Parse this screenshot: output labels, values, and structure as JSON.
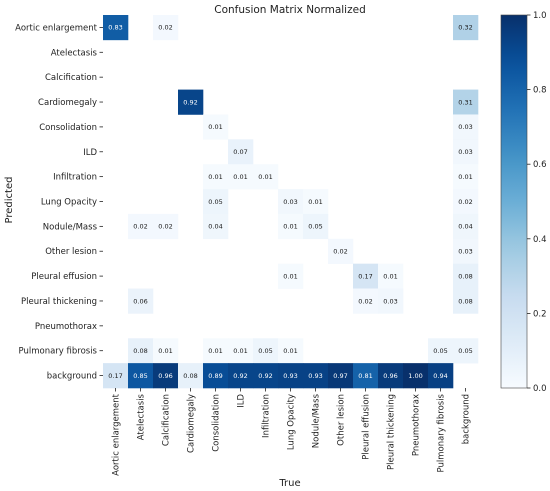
{
  "chart_data": {
    "type": "heatmap",
    "title": "Confusion Matrix Normalized",
    "xlabel": "True",
    "ylabel": "Predicted",
    "x_categories": [
      "Aortic enlargement",
      "Atelectasis",
      "Calcification",
      "Cardiomegaly",
      "Consolidation",
      "ILD",
      "Infiltration",
      "Lung Opacity",
      "Nodule/Mass",
      "Other lesion",
      "Pleural effusion",
      "Pleural thickening",
      "Pneumothorax",
      "Pulmonary fibrosis",
      "background"
    ],
    "y_categories": [
      "Aortic enlargement",
      "Atelectasis",
      "Calcification",
      "Cardiomegaly",
      "Consolidation",
      "ILD",
      "Infiltration",
      "Lung Opacity",
      "Nodule/Mass",
      "Other lesion",
      "Pleural effusion",
      "Pleural thickening",
      "Pneumothorax",
      "Pulmonary fibrosis",
      "background"
    ],
    "values": [
      [
        0.83,
        null,
        0.02,
        null,
        null,
        null,
        null,
        null,
        null,
        null,
        null,
        null,
        null,
        null,
        0.32
      ],
      [
        null,
        null,
        null,
        null,
        null,
        null,
        null,
        null,
        null,
        null,
        null,
        null,
        null,
        null,
        null
      ],
      [
        null,
        null,
        null,
        null,
        null,
        null,
        null,
        null,
        null,
        null,
        null,
        null,
        null,
        null,
        null
      ],
      [
        null,
        null,
        null,
        0.92,
        null,
        null,
        null,
        null,
        null,
        null,
        null,
        null,
        null,
        null,
        0.31
      ],
      [
        null,
        null,
        null,
        null,
        0.01,
        null,
        null,
        null,
        null,
        null,
        null,
        null,
        null,
        null,
        0.03
      ],
      [
        null,
        null,
        null,
        null,
        null,
        0.07,
        null,
        null,
        null,
        null,
        null,
        null,
        null,
        null,
        0.03
      ],
      [
        null,
        null,
        null,
        null,
        0.01,
        0.01,
        0.01,
        null,
        null,
        null,
        null,
        null,
        null,
        null,
        0.01
      ],
      [
        null,
        null,
        null,
        null,
        0.05,
        null,
        null,
        0.03,
        0.01,
        null,
        null,
        null,
        null,
        null,
        0.02
      ],
      [
        null,
        0.02,
        0.02,
        null,
        0.04,
        null,
        null,
        0.01,
        0.05,
        null,
        null,
        null,
        null,
        null,
        0.04
      ],
      [
        null,
        null,
        null,
        null,
        null,
        null,
        null,
        null,
        null,
        0.02,
        null,
        null,
        null,
        null,
        0.03
      ],
      [
        null,
        null,
        null,
        null,
        null,
        null,
        null,
        0.01,
        null,
        null,
        0.17,
        0.01,
        null,
        null,
        0.08
      ],
      [
        null,
        0.06,
        null,
        null,
        null,
        null,
        null,
        null,
        null,
        null,
        0.02,
        0.03,
        null,
        null,
        0.08
      ],
      [
        null,
        null,
        null,
        null,
        null,
        null,
        null,
        null,
        null,
        null,
        null,
        null,
        null,
        null,
        null
      ],
      [
        null,
        0.08,
        0.01,
        null,
        0.01,
        0.01,
        0.05,
        0.01,
        null,
        null,
        null,
        null,
        null,
        0.05,
        0.05
      ],
      [
        0.17,
        0.85,
        0.96,
        0.08,
        0.89,
        0.92,
        0.92,
        0.93,
        0.93,
        0.97,
        0.81,
        0.96,
        1.0,
        0.94,
        null
      ]
    ],
    "colorbar": {
      "min": 0.0,
      "max": 1.0,
      "ticks": [
        "0.0",
        "0.2",
        "0.4",
        "0.6",
        "0.8",
        "1.0"
      ],
      "colormap": "Blues"
    },
    "colors": {
      "low": "#f7fbff",
      "high": "#08306b"
    },
    "grid": false,
    "legend": "colorbar-right"
  }
}
